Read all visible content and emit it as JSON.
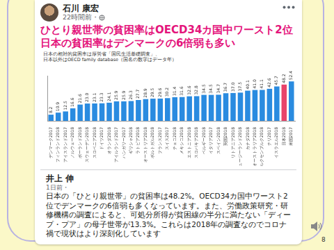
{
  "post": {
    "author": "石川 康宏",
    "time": "22時間前・",
    "headline": [
      "ひとり親世帯の貧困率はOECD34カ国中ワースト2位",
      "日本の貧困率はデンマークの6倍弱も多い"
    ]
  },
  "chart_data": {
    "type": "bar",
    "title": "日本の相対的貧困率は厚労省「国民生活基礎調査」、",
    "subtitle": "日本以外はOECD family database（国名の数字はデータ年）",
    "categories": [
      "デンマーク2017",
      "フィンランド2018",
      "アイスランド2017",
      "ノルウェー2018",
      "ポーランド2018",
      "スウェーデン2018",
      "スロベニア2018",
      "ドイツ2017",
      "オランダ2018",
      "アイルランド2017",
      "ハンガリー2017",
      "ギリシャ2018",
      "ラトビア2018",
      "オーストリア2018",
      "ポルトガル2018",
      "フランス2017",
      "スイス2017",
      "チェコ2018",
      "メキシコ2018",
      "エストニア2018",
      "スロバキア2018",
      "ベルギー2018",
      "イタリア2017",
      "スペイン2018",
      "英国2018",
      "リトアニア2018",
      "ニュージーランド2018",
      "カナダ2018",
      "オーストラリア2018",
      "ルクセンブルク2018",
      "チリ2017",
      "イスラエル2018",
      "日本2018",
      "米国2017"
    ],
    "values": [
      8.2,
      10.9,
      12.5,
      16.6,
      21.6,
      23.0,
      23.1,
      23.3,
      24.1,
      25.9,
      25.9,
      26.3,
      27.7,
      28.9,
      29.5,
      29.6,
      30.2,
      31.4,
      31.6,
      32.6,
      32.8,
      34.5,
      34.5,
      34.7,
      36.7,
      37.0,
      37.5,
      40.1,
      41.0,
      41.1,
      42.6,
      45.7,
      48.2,
      52.4
    ],
    "value_labels": [
      "8.2",
      "10.9",
      "12.5",
      "16.6",
      "21.6",
      "23.0",
      "23.1",
      "23.3",
      "24.1",
      "25.9",
      "25.9",
      "26.3",
      "27.7",
      "28.9",
      "29.5",
      "29.6",
      "30.2",
      "31.4",
      "31.6",
      "32.6",
      "32.8",
      "34.5",
      "34.5",
      "34.7",
      "36.7",
      "37.0",
      "37.5",
      "40.1",
      "41.0",
      "41.1",
      "42.6",
      "45.7",
      "48.2",
      "52.4"
    ],
    "colors": [
      "#2a8be0",
      "#2a8be0",
      "#2a8be0",
      "#2a8be0",
      "#2a8be0",
      "#2a8be0",
      "#2a8be0",
      "#2a8be0",
      "#2a8be0",
      "#2a8be0",
      "#2a8be0",
      "#2a8be0",
      "#2a8be0",
      "#2a8be0",
      "#2a8be0",
      "#2a8be0",
      "#2a8be0",
      "#2a8be0",
      "#2a8be0",
      "#2a8be0",
      "#2a8be0",
      "#2a8be0",
      "#2a8be0",
      "#2a8be0",
      "#2a8be0",
      "#2a8be0",
      "#2a8be0",
      "#2a8be0",
      "#2a8be0",
      "#2a8be0",
      "#2a8be0",
      "#2a8be0",
      "#e9436a",
      "#2a8be0"
    ],
    "ylim": [
      0,
      60
    ],
    "grid": false,
    "data_labels": true,
    "tick_labels": "x"
  },
  "quote": {
    "author": "井上 伸",
    "time": "1日前・",
    "text": "日本の「ひとり親世帯」の貧困率は48.2%。OECD34カ国中ワースト2位でデンマークの6倍弱も多くなっています。また、労働政策研究・研修機構の調査によると、可処分所得が貧困線の半分に満たない「ディープ・プア」の母子世帯が13.3%。これらは2018年の調査なのでコロナ禍で現状はより深刻化しています"
  },
  "page_number": "8"
}
